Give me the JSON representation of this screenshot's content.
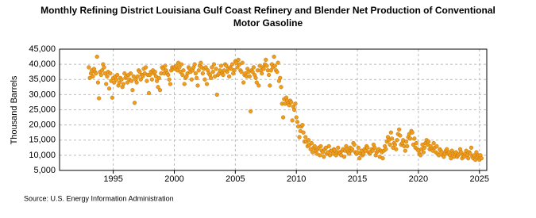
{
  "chart_data": {
    "type": "scatter",
    "title": "Monthly Refining District Louisiana Gulf Coast Refinery and Blender Net Production of Conventional Motor Gasoline",
    "y_label": "Thousand Barrels",
    "source": "Source: U.S. Energy Information Administration",
    "color": "#f09c1c",
    "grid": true,
    "xlim": [
      1990.6,
      2025.6
    ],
    "ylim": [
      5000,
      45000
    ],
    "xticks": [
      1995,
      2000,
      2005,
      2010,
      2015,
      2020,
      2025
    ],
    "yticks": [
      {
        "value": 5000,
        "label": "5,000"
      },
      {
        "value": 10000,
        "label": "10,000"
      },
      {
        "value": 15000,
        "label": "15,000"
      },
      {
        "value": 20000,
        "label": "20,000"
      },
      {
        "value": 25000,
        "label": "25,000"
      },
      {
        "value": 30000,
        "label": "30,000"
      },
      {
        "value": 35000,
        "label": "35,000"
      },
      {
        "value": 40000,
        "label": "40,000"
      },
      {
        "value": 45000,
        "label": "45,000"
      }
    ],
    "x": [
      1993,
      1993.08,
      1993.17,
      1993.25,
      1993.33,
      1993.42,
      1993.5,
      1993.58,
      1993.67,
      1993.75,
      1993.83,
      1993.92,
      1994,
      1994.08,
      1994.17,
      1994.25,
      1994.33,
      1994.42,
      1994.5,
      1994.58,
      1994.67,
      1994.75,
      1994.83,
      1994.92,
      1995,
      1995.08,
      1995.17,
      1995.25,
      1995.33,
      1995.42,
      1995.5,
      1995.58,
      1995.67,
      1995.75,
      1995.83,
      1995.92,
      1996,
      1996.08,
      1996.17,
      1996.25,
      1996.33,
      1996.42,
      1996.5,
      1996.58,
      1996.67,
      1996.75,
      1996.83,
      1996.92,
      1997,
      1997.08,
      1997.17,
      1997.25,
      1997.33,
      1997.42,
      1997.5,
      1997.58,
      1997.67,
      1997.75,
      1997.83,
      1997.92,
      1998,
      1998.08,
      1998.17,
      1998.25,
      1998.33,
      1998.42,
      1998.5,
      1998.58,
      1998.67,
      1998.75,
      1998.83,
      1998.92,
      1999,
      1999.08,
      1999.17,
      1999.25,
      1999.33,
      1999.42,
      1999.5,
      1999.58,
      1999.67,
      1999.75,
      1999.83,
      1999.92,
      2000,
      2000.08,
      2000.17,
      2000.25,
      2000.33,
      2000.42,
      2000.5,
      2000.58,
      2000.67,
      2000.75,
      2000.83,
      2000.92,
      2001,
      2001.08,
      2001.17,
      2001.25,
      2001.33,
      2001.42,
      2001.5,
      2001.58,
      2001.67,
      2001.75,
      2001.83,
      2001.92,
      2002,
      2002.08,
      2002.17,
      2002.25,
      2002.33,
      2002.42,
      2002.5,
      2002.58,
      2002.67,
      2002.75,
      2002.83,
      2002.92,
      2003,
      2003.08,
      2003.17,
      2003.25,
      2003.33,
      2003.42,
      2003.5,
      2003.58,
      2003.67,
      2003.75,
      2003.83,
      2003.92,
      2004,
      2004.08,
      2004.17,
      2004.25,
      2004.33,
      2004.42,
      2004.5,
      2004.58,
      2004.67,
      2004.75,
      2004.83,
      2004.92,
      2005,
      2005.08,
      2005.17,
      2005.25,
      2005.33,
      2005.42,
      2005.5,
      2005.58,
      2005.67,
      2005.75,
      2005.83,
      2005.92,
      2006,
      2006.08,
      2006.17,
      2006.25,
      2006.33,
      2006.42,
      2006.5,
      2006.58,
      2006.67,
      2006.75,
      2006.83,
      2006.92,
      2007,
      2007.08,
      2007.17,
      2007.25,
      2007.33,
      2007.42,
      2007.5,
      2007.58,
      2007.67,
      2007.75,
      2007.83,
      2007.92,
      2008,
      2008.08,
      2008.17,
      2008.25,
      2008.33,
      2008.42,
      2008.5,
      2008.58,
      2008.67,
      2008.75,
      2008.83,
      2008.92,
      2009,
      2009.08,
      2009.17,
      2009.25,
      2009.33,
      2009.42,
      2009.5,
      2009.58,
      2009.67,
      2009.75,
      2009.83,
      2009.92,
      2010,
      2010.08,
      2010.17,
      2010.25,
      2010.33,
      2010.42,
      2010.5,
      2010.58,
      2010.67,
      2010.75,
      2010.83,
      2010.92,
      2011,
      2011.08,
      2011.17,
      2011.25,
      2011.33,
      2011.42,
      2011.5,
      2011.58,
      2011.67,
      2011.75,
      2011.83,
      2011.92,
      2012,
      2012.08,
      2012.17,
      2012.25,
      2012.33,
      2012.42,
      2012.5,
      2012.58,
      2012.67,
      2012.75,
      2012.83,
      2012.92,
      2013,
      2013.08,
      2013.17,
      2013.25,
      2013.33,
      2013.42,
      2013.5,
      2013.58,
      2013.67,
      2013.75,
      2013.83,
      2013.92,
      2014,
      2014.08,
      2014.17,
      2014.25,
      2014.33,
      2014.42,
      2014.5,
      2014.58,
      2014.67,
      2014.75,
      2014.83,
      2014.92,
      2015,
      2015.08,
      2015.17,
      2015.25,
      2015.33,
      2015.42,
      2015.5,
      2015.58,
      2015.67,
      2015.75,
      2015.83,
      2015.92,
      2016,
      2016.08,
      2016.17,
      2016.25,
      2016.33,
      2016.42,
      2016.5,
      2016.58,
      2016.67,
      2016.75,
      2016.83,
      2016.92,
      2017,
      2017.08,
      2017.17,
      2017.25,
      2017.33,
      2017.42,
      2017.5,
      2017.58,
      2017.67,
      2017.75,
      2017.83,
      2017.92,
      2018,
      2018.08,
      2018.17,
      2018.25,
      2018.33,
      2018.42,
      2018.5,
      2018.58,
      2018.67,
      2018.75,
      2018.83,
      2018.92,
      2019,
      2019.08,
      2019.17,
      2019.25,
      2019.33,
      2019.42,
      2019.5,
      2019.58,
      2019.67,
      2019.75,
      2019.83,
      2019.92,
      2020,
      2020.08,
      2020.17,
      2020.25,
      2020.33,
      2020.42,
      2020.5,
      2020.58,
      2020.67,
      2020.75,
      2020.83,
      2020.92,
      2021,
      2021.08,
      2021.17,
      2021.25,
      2021.33,
      2021.42,
      2021.5,
      2021.58,
      2021.67,
      2021.75,
      2021.83,
      2021.92,
      2022,
      2022.08,
      2022.17,
      2022.25,
      2022.33,
      2022.42,
      2022.5,
      2022.58,
      2022.67,
      2022.75,
      2022.83,
      2022.92,
      2023,
      2023.08,
      2023.17,
      2023.25,
      2023.33,
      2023.42,
      2023.5,
      2023.58,
      2023.67,
      2023.75,
      2023.83,
      2023.92,
      2024,
      2024.08,
      2024.17,
      2024.25,
      2024.33,
      2024.42,
      2024.5,
      2024.58,
      2024.67,
      2024.75,
      2024.83,
      2024.92,
      2025,
      2025.08,
      2025.17
    ],
    "values": [
      39000,
      35500,
      37000,
      38000,
      36000,
      38500,
      37500,
      37000,
      42500,
      34000,
      28800,
      37500,
      36500,
      38000,
      40000,
      39000,
      37000,
      33500,
      36000,
      37500,
      32000,
      37000,
      34500,
      29000,
      35500,
      34000,
      36000,
      35000,
      36500,
      33000,
      34000,
      35500,
      35000,
      32500,
      33500,
      37000,
      35500,
      36000,
      34000,
      36500,
      35000,
      37000,
      34500,
      31500,
      36000,
      27300,
      35000,
      34000,
      36000,
      38000,
      37500,
      35000,
      36500,
      36000,
      38500,
      37000,
      39000,
      34500,
      36500,
      30500,
      36500,
      37500,
      35000,
      38000,
      37000,
      37500,
      36000,
      34500,
      32500,
      35500,
      31500,
      37000,
      39000,
      38500,
      37000,
      39500,
      38000,
      37000,
      36500,
      35000,
      33500,
      38000,
      39000,
      38500,
      39000,
      38500,
      39500,
      38000,
      40500,
      39000,
      37500,
      40000,
      36500,
      38000,
      33500,
      35500,
      36000,
      37000,
      39000,
      38500,
      37500,
      35000,
      38000,
      39000,
      40000,
      37000,
      35500,
      33000,
      38000,
      39500,
      40500,
      39000,
      37000,
      38500,
      35000,
      39000,
      33500,
      38000,
      37000,
      36500,
      35500,
      39000,
      37500,
      40000,
      36000,
      38500,
      30000,
      36500,
      37000,
      38000,
      39500,
      37000,
      36500,
      38000,
      40000,
      39500,
      37500,
      38500,
      36000,
      39000,
      38500,
      40000,
      37000,
      38000,
      41000,
      40500,
      39000,
      41500,
      40000,
      38000,
      37500,
      40500,
      34000,
      36500,
      37000,
      36000,
      38500,
      37500,
      36000,
      24500,
      38000,
      37500,
      39000,
      36500,
      35500,
      34000,
      38000,
      33000,
      39500,
      38000,
      37000,
      39000,
      38500,
      40000,
      41500,
      39500,
      38000,
      36500,
      33000,
      38000,
      40000,
      39000,
      42500,
      39500,
      38000,
      37500,
      40500,
      34500,
      35500,
      32500,
      27000,
      22500,
      28500,
      27000,
      29000,
      28000,
      27000,
      26500,
      28000,
      27500,
      21500,
      26000,
      25000,
      27000,
      22500,
      21000,
      19500,
      16000,
      18000,
      19500,
      20000,
      17500,
      14500,
      16000,
      14500,
      13000,
      15000,
      13500,
      12000,
      14000,
      11000,
      12500,
      13000,
      11500,
      10500,
      12000,
      12500,
      10000,
      13000,
      11500,
      11000,
      9500,
      12000,
      12500,
      10500,
      11000,
      13000,
      10000,
      11500,
      11500,
      10500,
      12000,
      11500,
      10000,
      11000,
      12500,
      11000,
      10500,
      10000,
      11500,
      12000,
      9500,
      11500,
      13000,
      12000,
      11000,
      10500,
      12500,
      11500,
      12000,
      14000,
      13500,
      11000,
      10500,
      11000,
      12500,
      9000,
      10500,
      11500,
      10000,
      10500,
      12000,
      11500,
      13000,
      12500,
      11000,
      10500,
      11000,
      12000,
      11500,
      13500,
      12500,
      10000,
      11000,
      11500,
      12000,
      9500,
      11500,
      11000,
      9000,
      11500,
      13000,
      12000,
      14500,
      16000,
      15000,
      13500,
      17500,
      15500,
      12500,
      14000,
      13500,
      12000,
      15000,
      17000,
      18500,
      16500,
      13500,
      14000,
      15000,
      13000,
      11500,
      14500,
      13000,
      16000,
      17000,
      15500,
      18000,
      17500,
      13500,
      15500,
      12500,
      14000,
      12000,
      11500,
      10500,
      10000,
      12000,
      13500,
      11000,
      12500,
      14000,
      15000,
      13500,
      14500,
      12000,
      13000,
      12000,
      11500,
      14000,
      12500,
      11000,
      13000,
      10500,
      10000,
      12000,
      11500,
      11000,
      10000,
      9500,
      10500,
      11500,
      12000,
      10500,
      11000,
      10000,
      9000,
      11500,
      10500,
      9500,
      10500,
      11000,
      9500,
      10000,
      10500,
      12000,
      11000,
      9000,
      10000,
      9500,
      10500,
      11500,
      10000,
      9000,
      11000,
      10500,
      12500,
      9500,
      9000,
      10000,
      8500,
      11000,
      9500,
      10000,
      8500,
      10000,
      9000
    ]
  }
}
